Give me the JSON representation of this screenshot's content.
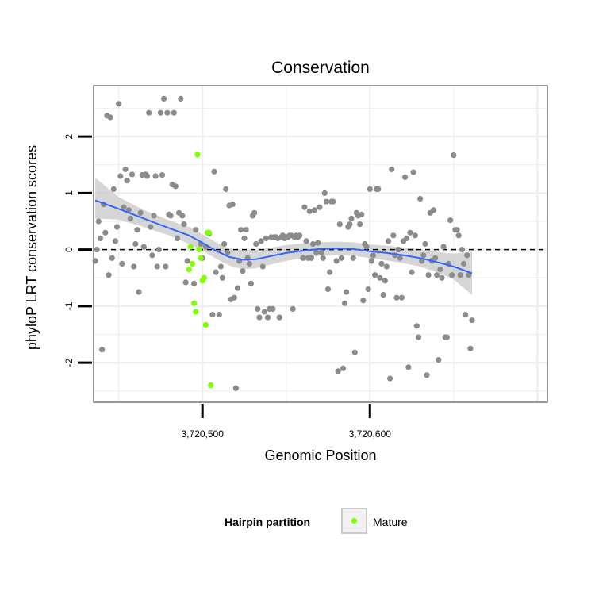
{
  "chart_data": {
    "type": "scatter",
    "title": "Conservation",
    "xlabel": "Genomic Position",
    "ylabel": "phyloP LRT conservation scores",
    "xlim": [
      3720435,
      3720706
    ],
    "ylim": [
      -2.7,
      2.9
    ],
    "x_ticks": [
      {
        "value": 3720500,
        "label": "3,720,500"
      },
      {
        "value": 3720600,
        "label": "3,720,600"
      }
    ],
    "y_ticks": [
      {
        "value": 2,
        "label": "2"
      },
      {
        "value": 1,
        "label": "1"
      },
      {
        "value": 0,
        "label": "0"
      },
      {
        "value": -1,
        "label": "-1"
      },
      {
        "value": -2,
        "label": "-2"
      }
    ],
    "reference_line": {
      "y": 0,
      "style": "dashed"
    },
    "grid": true,
    "legend": {
      "title": "Hairpin partition",
      "position": "bottom",
      "entries": [
        "Mature"
      ]
    },
    "colors": {
      "other": "#8c8c8c",
      "mature": "#7fff00",
      "smooth": "#3366ff",
      "band": "#c8c8c8",
      "panel_border": "#7f7f7f",
      "grid": "#f0f0f0"
    },
    "series": [
      {
        "color_key": "other",
        "points": [
          [
            3720436,
            -0.2
          ],
          [
            3720437,
            0.0
          ],
          [
            3720438,
            0.5
          ],
          [
            3720439,
            0.2
          ],
          [
            3720440,
            -1.77
          ],
          [
            3720441,
            0.8
          ],
          [
            3720442,
            0.3
          ],
          [
            3720443,
            2.37
          ],
          [
            3720444,
            -0.45
          ],
          [
            3720445,
            2.34
          ],
          [
            3720446,
            -0.15
          ],
          [
            3720447,
            1.07
          ],
          [
            3720448,
            0.15
          ],
          [
            3720449,
            0.4
          ],
          [
            3720450,
            2.58
          ],
          [
            3720451,
            1.3
          ],
          [
            3720452,
            -0.25
          ],
          [
            3720453,
            0.75
          ],
          [
            3720454,
            1.42
          ],
          [
            3720455,
            1.22
          ],
          [
            3720456,
            0.7
          ],
          [
            3720457,
            0.55
          ],
          [
            3720458,
            1.33
          ],
          [
            3720459,
            -0.3
          ],
          [
            3720460,
            0.1
          ],
          [
            3720461,
            0.35
          ],
          [
            3720462,
            -0.75
          ],
          [
            3720463,
            0.65
          ],
          [
            3720464,
            1.32
          ],
          [
            3720465,
            0.05
          ],
          [
            3720466,
            1.33
          ],
          [
            3720467,
            1.3
          ],
          [
            3720468,
            2.42
          ],
          [
            3720469,
            0.4
          ],
          [
            3720470,
            -0.1
          ],
          [
            3720471,
            0.6
          ],
          [
            3720472,
            1.3
          ],
          [
            3720473,
            -0.3
          ],
          [
            3720474,
            0.0
          ],
          [
            3720475,
            2.42
          ],
          [
            3720476,
            1.32
          ],
          [
            3720477,
            2.67
          ],
          [
            3720478,
            -0.3
          ],
          [
            3720479,
            2.42
          ],
          [
            3720480,
            0.62
          ],
          [
            3720481,
            0.6
          ],
          [
            3720482,
            1.15
          ],
          [
            3720483,
            2.42
          ],
          [
            3720484,
            1.12
          ],
          [
            3720485,
            0.2
          ],
          [
            3720486,
            0.65
          ],
          [
            3720487,
            2.67
          ],
          [
            3720488,
            0.6
          ],
          [
            3720489,
            0.45
          ],
          [
            3720490,
            -0.58
          ],
          [
            3720491,
            -0.2
          ],
          [
            3720495,
            -0.6
          ],
          [
            3720496,
            0.35
          ],
          [
            3720499,
            0.1
          ],
          [
            3720500,
            -0.15
          ],
          [
            3720502,
            0.05
          ],
          [
            3720504,
            0.28
          ],
          [
            3720506,
            -1.15
          ],
          [
            3720507,
            1.38
          ],
          [
            3720508,
            -0.4
          ],
          [
            3720510,
            -1.15
          ],
          [
            3720511,
            -0.3
          ],
          [
            3720512,
            -0.5
          ],
          [
            3720513,
            0.1
          ],
          [
            3720514,
            1.07
          ],
          [
            3720515,
            -0.05
          ],
          [
            3720516,
            0.78
          ],
          [
            3720517,
            -0.88
          ],
          [
            3720518,
            0.8
          ],
          [
            3720519,
            -0.85
          ],
          [
            3720520,
            -2.45
          ],
          [
            3720521,
            -0.68
          ],
          [
            3720522,
            -0.2
          ],
          [
            3720523,
            0.35
          ],
          [
            3720524,
            -0.38
          ],
          [
            3720525,
            0.2
          ],
          [
            3720526,
            0.35
          ],
          [
            3720527,
            -0.15
          ],
          [
            3720528,
            -0.25
          ],
          [
            3720529,
            -0.6
          ],
          [
            3720530,
            0.6
          ],
          [
            3720531,
            0.65
          ],
          [
            3720532,
            0.1
          ],
          [
            3720533,
            -1.05
          ],
          [
            3720534,
            -1.2
          ],
          [
            3720535,
            0.15
          ],
          [
            3720536,
            -0.3
          ],
          [
            3720537,
            -1.1
          ],
          [
            3720538,
            0.2
          ],
          [
            3720539,
            -1.2
          ],
          [
            3720540,
            -1.05
          ],
          [
            3720541,
            0.22
          ],
          [
            3720542,
            -1.05
          ],
          [
            3720543,
            0.22
          ],
          [
            3720544,
            0.22
          ],
          [
            3720545,
            0.2
          ],
          [
            3720546,
            -1.2
          ],
          [
            3720547,
            0.22
          ],
          [
            3720548,
            0.25
          ],
          [
            3720549,
            0.2
          ],
          [
            3720550,
            0.22
          ],
          [
            3720551,
            0.22
          ],
          [
            3720552,
            0.25
          ],
          [
            3720553,
            0.25
          ],
          [
            3720554,
            -1.05
          ],
          [
            3720555,
            0.22
          ],
          [
            3720556,
            0.25
          ],
          [
            3720557,
            0.22
          ],
          [
            3720558,
            0.25
          ],
          [
            3720560,
            -0.15
          ],
          [
            3720561,
            0.75
          ],
          [
            3720562,
            0.15
          ],
          [
            3720563,
            -0.15
          ],
          [
            3720564,
            0.68
          ],
          [
            3720565,
            -0.15
          ],
          [
            3720566,
            0.1
          ],
          [
            3720567,
            0.7
          ],
          [
            3720568,
            -0.05
          ],
          [
            3720569,
            0.12
          ],
          [
            3720570,
            0.75
          ],
          [
            3720571,
            -0.05
          ],
          [
            3720572,
            -0.15
          ],
          [
            3720573,
            1.0
          ],
          [
            3720574,
            0.85
          ],
          [
            3720575,
            -0.7
          ],
          [
            3720576,
            -0.4
          ],
          [
            3720577,
            0.85
          ],
          [
            3720578,
            0.85
          ],
          [
            3720580,
            -0.2
          ],
          [
            3720581,
            -2.15
          ],
          [
            3720582,
            0.45
          ],
          [
            3720583,
            -0.15
          ],
          [
            3720584,
            -2.1
          ],
          [
            3720585,
            -0.95
          ],
          [
            3720586,
            -0.75
          ],
          [
            3720587,
            0.4
          ],
          [
            3720588,
            0.45
          ],
          [
            3720589,
            0.55
          ],
          [
            3720590,
            -0.15
          ],
          [
            3720591,
            -1.82
          ],
          [
            3720592,
            0.65
          ],
          [
            3720593,
            0.6
          ],
          [
            3720594,
            0.45
          ],
          [
            3720595,
            0.62
          ],
          [
            3720596,
            -0.9
          ],
          [
            3720597,
            0.1
          ],
          [
            3720598,
            0.05
          ],
          [
            3720599,
            -0.7
          ],
          [
            3720600,
            1.07
          ],
          [
            3720601,
            -0.2
          ],
          [
            3720602,
            -0.1
          ],
          [
            3720603,
            -0.45
          ],
          [
            3720604,
            1.07
          ],
          [
            3720605,
            1.07
          ],
          [
            3720606,
            -0.5
          ],
          [
            3720607,
            -0.25
          ],
          [
            3720608,
            -0.8
          ],
          [
            3720609,
            -0.55
          ],
          [
            3720610,
            -0.3
          ],
          [
            3720611,
            0.15
          ],
          [
            3720612,
            -2.28
          ],
          [
            3720613,
            1.42
          ],
          [
            3720614,
            0.25
          ],
          [
            3720615,
            -0.1
          ],
          [
            3720616,
            -0.85
          ],
          [
            3720617,
            0.0
          ],
          [
            3720618,
            -0.15
          ],
          [
            3720619,
            -0.85
          ],
          [
            3720620,
            0.15
          ],
          [
            3720621,
            1.28
          ],
          [
            3720622,
            0.2
          ],
          [
            3720623,
            -2.08
          ],
          [
            3720624,
            0.3
          ],
          [
            3720625,
            -0.4
          ],
          [
            3720626,
            1.37
          ],
          [
            3720627,
            0.25
          ],
          [
            3720628,
            -1.35
          ],
          [
            3720629,
            -1.55
          ],
          [
            3720630,
            0.9
          ],
          [
            3720631,
            -0.2
          ],
          [
            3720632,
            -0.1
          ],
          [
            3720633,
            0.1
          ],
          [
            3720634,
            -2.22
          ],
          [
            3720635,
            -0.45
          ],
          [
            3720636,
            0.65
          ],
          [
            3720637,
            -0.2
          ],
          [
            3720638,
            0.7
          ],
          [
            3720639,
            -0.15
          ],
          [
            3720640,
            -0.45
          ],
          [
            3720641,
            -1.95
          ],
          [
            3720642,
            -0.35
          ],
          [
            3720643,
            -0.5
          ],
          [
            3720644,
            0.05
          ],
          [
            3720645,
            -1.55
          ],
          [
            3720646,
            -1.55
          ],
          [
            3720647,
            -0.25
          ],
          [
            3720648,
            0.52
          ],
          [
            3720649,
            -0.45
          ],
          [
            3720650,
            1.67
          ],
          [
            3720651,
            0.35
          ],
          [
            3720652,
            0.35
          ],
          [
            3720653,
            0.25
          ],
          [
            3720654,
            -0.45
          ],
          [
            3720655,
            0.0
          ],
          [
            3720656,
            -0.25
          ],
          [
            3720657,
            -1.15
          ],
          [
            3720658,
            -0.1
          ],
          [
            3720659,
            -0.45
          ],
          [
            3720660,
            -1.75
          ],
          [
            3720661,
            -1.25
          ]
        ]
      },
      {
        "name": "Mature",
        "color_key": "mature",
        "points": [
          [
            3720492,
            -0.35
          ],
          [
            3720493,
            0.05
          ],
          [
            3720494,
            -0.25
          ],
          [
            3720495,
            -0.95
          ],
          [
            3720496,
            -1.1
          ],
          [
            3720497,
            1.68
          ],
          [
            3720498,
            0.0
          ],
          [
            3720499,
            -0.15
          ],
          [
            3720500,
            -0.55
          ],
          [
            3720501,
            -0.5
          ],
          [
            3720502,
            -1.33
          ],
          [
            3720503,
            0.3
          ],
          [
            3720504,
            0.3
          ],
          [
            3720505,
            -2.4
          ]
        ]
      }
    ],
    "smooth_line": {
      "x": [
        3720436,
        3720450,
        3720465,
        3720480,
        3720492,
        3720500,
        3720508,
        3720516,
        3720524,
        3720532,
        3720540,
        3720550,
        3720560,
        3720570,
        3720580,
        3720590,
        3720600,
        3720610,
        3720620,
        3720630,
        3720640,
        3720650,
        3720661
      ],
      "y": [
        0.87,
        0.72,
        0.55,
        0.38,
        0.25,
        0.12,
        -0.02,
        -0.13,
        -0.18,
        -0.17,
        -0.12,
        -0.06,
        -0.02,
        0.01,
        0.02,
        0.01,
        -0.03,
        -0.06,
        -0.1,
        -0.15,
        -0.22,
        -0.3,
        -0.42
      ],
      "band_lower": [
        0.55,
        0.53,
        0.4,
        0.25,
        0.1,
        -0.02,
        -0.16,
        -0.28,
        -0.35,
        -0.33,
        -0.27,
        -0.2,
        -0.15,
        -0.11,
        -0.1,
        -0.11,
        -0.15,
        -0.19,
        -0.24,
        -0.3,
        -0.4,
        -0.53,
        -0.8
      ],
      "band_upper": [
        1.27,
        0.93,
        0.7,
        0.52,
        0.4,
        0.27,
        0.13,
        0.02,
        -0.01,
        -0.01,
        0.03,
        0.08,
        0.11,
        0.13,
        0.14,
        0.13,
        0.09,
        0.07,
        0.04,
        0.0,
        -0.04,
        -0.07,
        -0.04
      ]
    }
  }
}
